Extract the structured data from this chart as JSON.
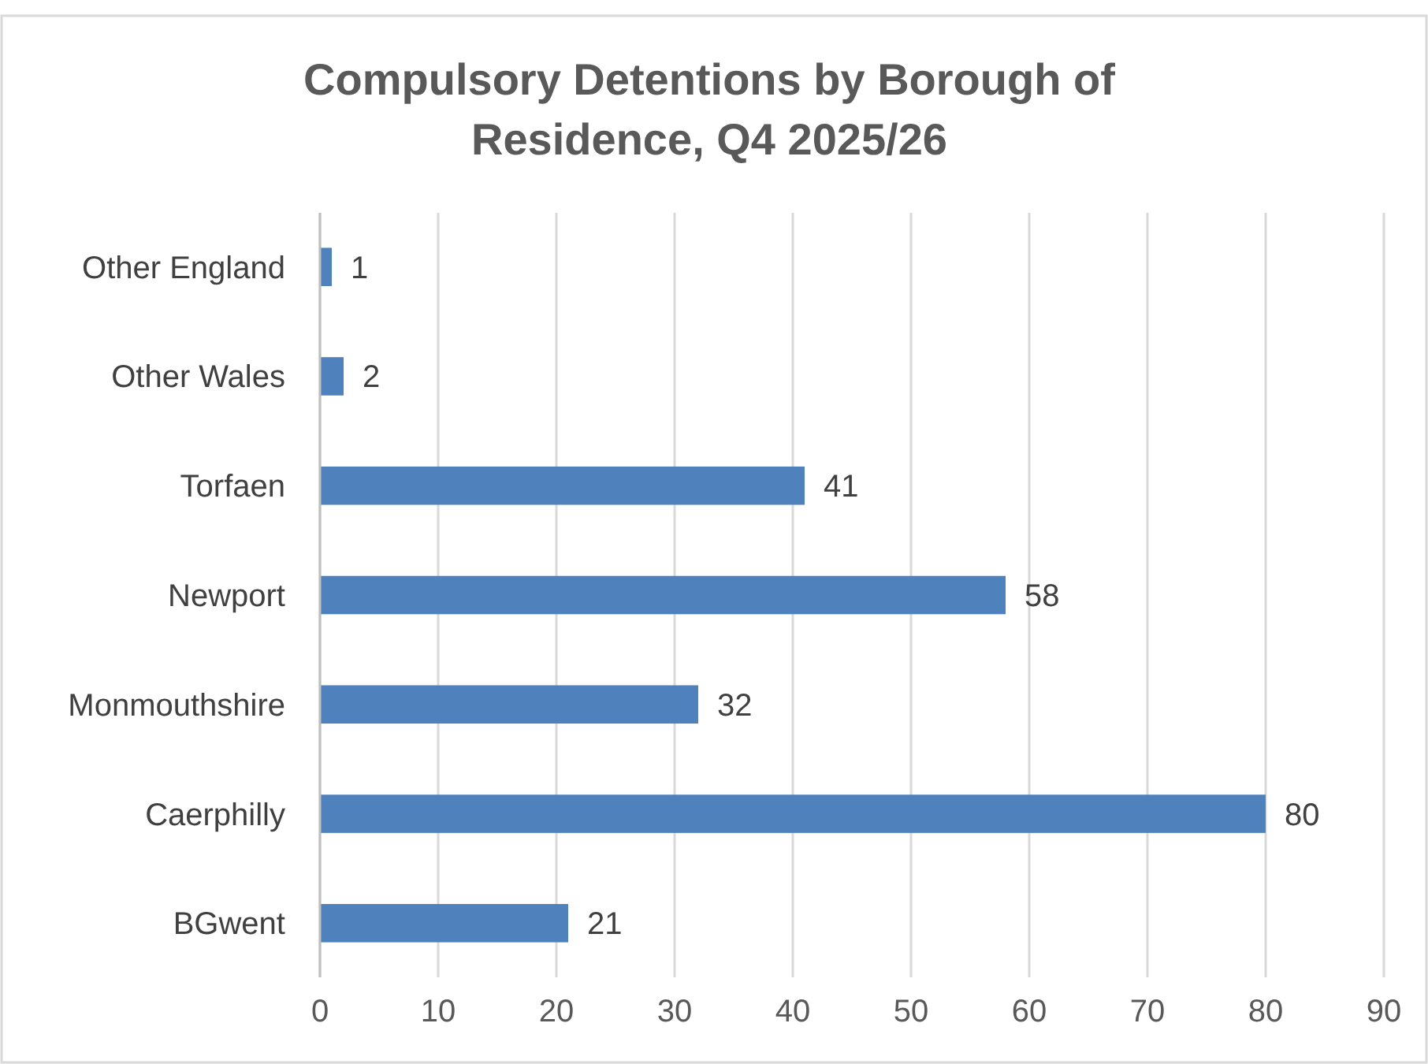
{
  "chart_data": {
    "type": "bar",
    "orientation": "horizontal",
    "title": "Compulsory Detentions by Borough of Residence, Q4 2025/26",
    "categories": [
      "Other England",
      "Other Wales",
      "Torfaen",
      "Newport",
      "Monmouthshire",
      "Caerphilly",
      "BGwent"
    ],
    "values": [
      1,
      2,
      41,
      58,
      32,
      80,
      21
    ],
    "color": "#4f81bd",
    "xlim": [
      0,
      90
    ],
    "xticks": [
      0,
      10,
      20,
      30,
      40,
      50,
      60,
      70,
      80,
      90
    ],
    "grid": "x",
    "data_labels": true
  }
}
